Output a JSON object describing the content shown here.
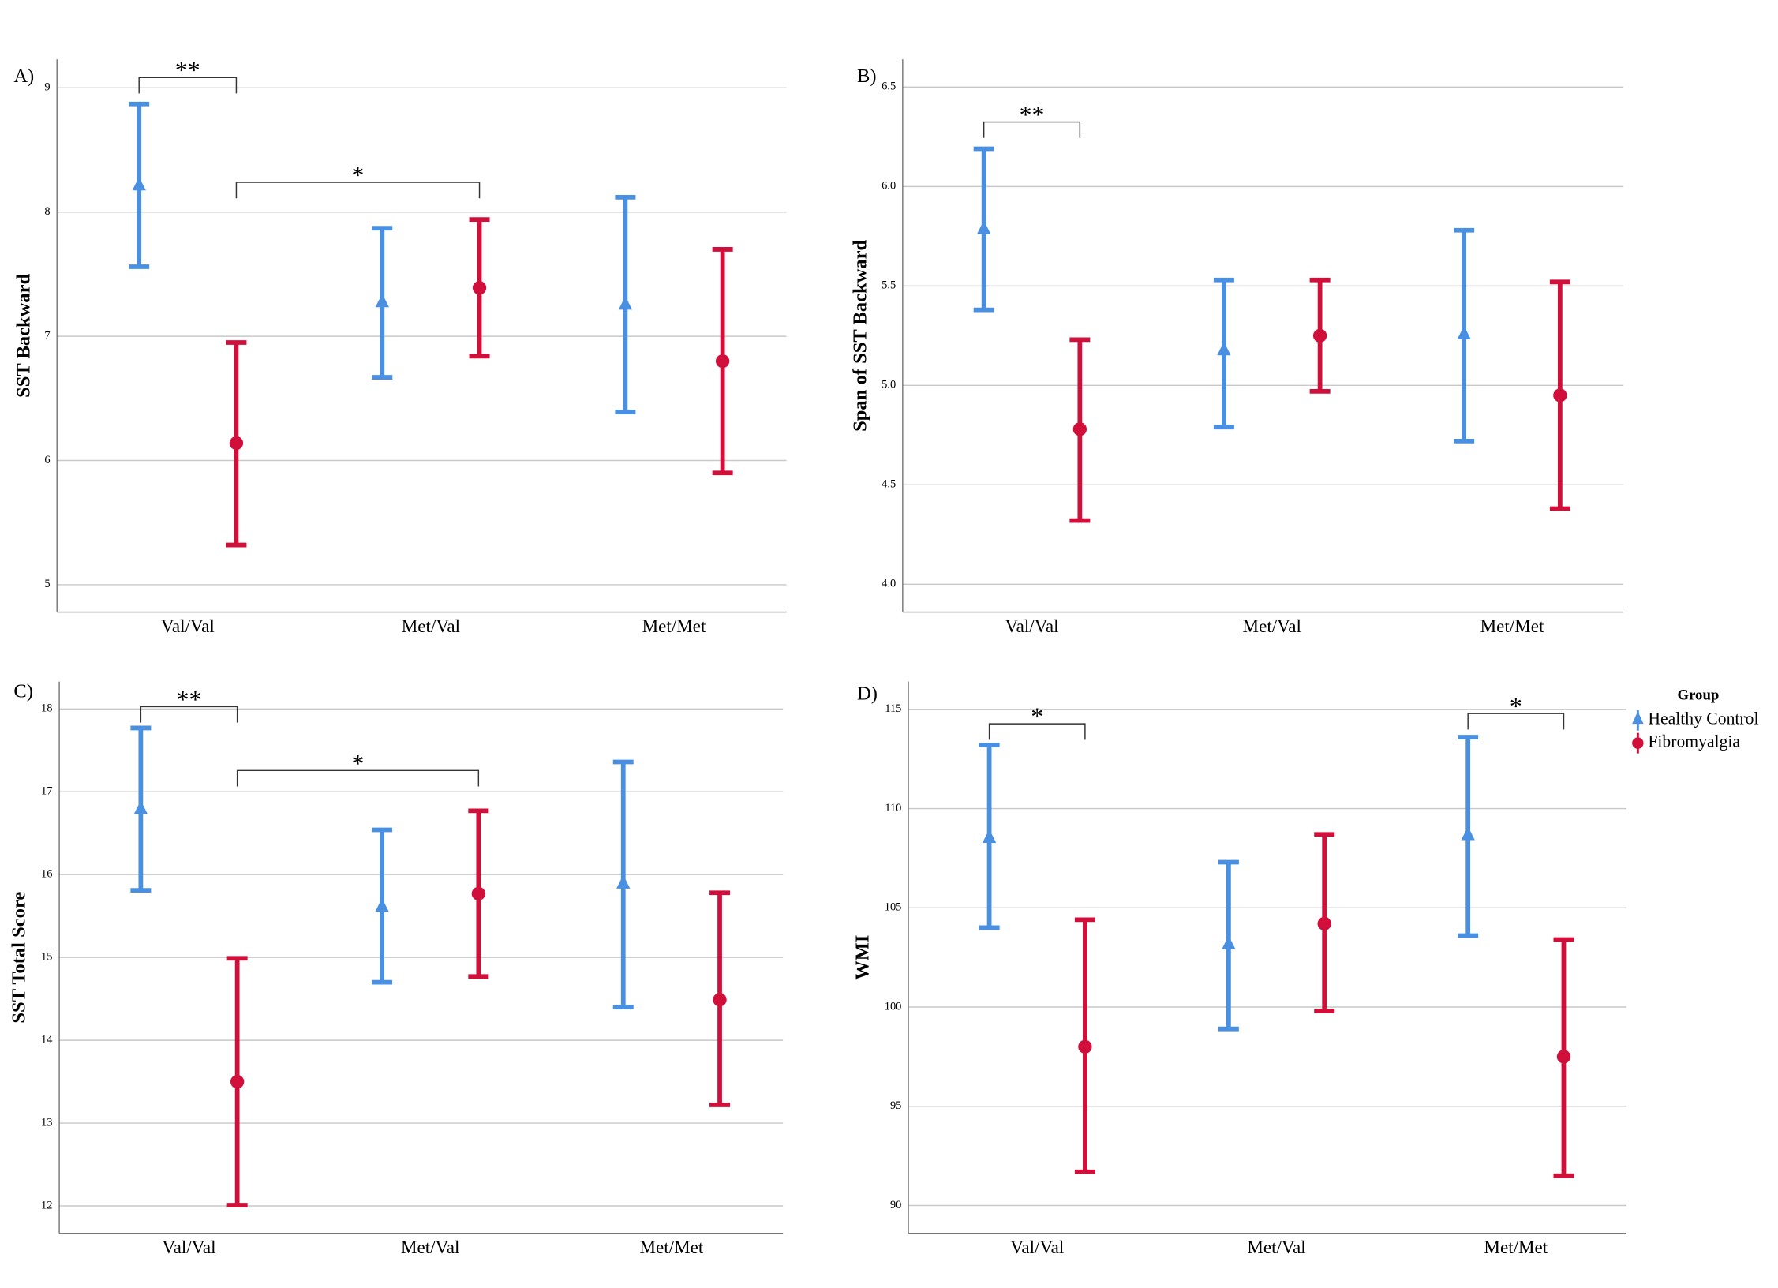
{
  "chart_data": [
    {
      "type": "errorbar",
      "label": "A)",
      "y_label": "SST Backward",
      "categories": [
        "Val/Val",
        "Met/Val",
        "Met/Met"
      ],
      "ylim": [
        4.78,
        9.23
      ],
      "yticks": [
        5,
        6,
        7,
        8,
        9
      ],
      "grid": true,
      "series": [
        {
          "color": "#4a90e2",
          "marker": "triangle",
          "values": [
            8.22,
            7.28,
            7.26
          ],
          "lower": [
            7.56,
            6.67,
            6.39
          ],
          "upper": [
            8.87,
            7.87,
            8.12
          ]
        },
        {
          "color": "#d0103a",
          "marker": "circle",
          "values": [
            6.14,
            7.39,
            6.8
          ],
          "lower": [
            5.32,
            6.84,
            5.9
          ],
          "upper": [
            6.95,
            7.94,
            7.7
          ]
        }
      ],
      "annotations": [
        "**",
        "*"
      ]
    },
    {
      "type": "errorbar",
      "label": "B)",
      "y_label": "Span of SST Backward",
      "categories": [
        "Val/Val",
        "Met/Val",
        "Met/Met"
      ],
      "ylim": [
        3.86,
        6.64
      ],
      "yticks": [
        {
          "value": 4,
          "label": "4.0"
        },
        4.5,
        {
          "value": 5,
          "label": "5.0"
        },
        5.5,
        {
          "value": 6,
          "label": "6.0"
        },
        6.5
      ],
      "grid": true,
      "series": [
        {
          "color": "#4a90e2",
          "marker": "triangle",
          "values": [
            5.79,
            5.18,
            5.26
          ],
          "lower": [
            5.38,
            4.79,
            4.72
          ],
          "upper": [
            6.19,
            5.53,
            5.78
          ]
        },
        {
          "color": "#d0103a",
          "marker": "circle",
          "values": [
            4.78,
            5.25,
            4.95
          ],
          "lower": [
            4.32,
            4.97,
            4.38
          ],
          "upper": [
            5.23,
            5.53,
            5.52
          ]
        }
      ],
      "annotations": [
        "**"
      ]
    },
    {
      "type": "errorbar",
      "label": "C)",
      "y_label": "SST Total Score",
      "categories": [
        "Val/Val",
        "Met/Val",
        "Met/Met"
      ],
      "ylim": [
        11.67,
        18.33
      ],
      "yticks": [
        12,
        13,
        14,
        15,
        16,
        17,
        18
      ],
      "grid": true,
      "series": [
        {
          "color": "#4a90e2",
          "marker": "triangle",
          "values": [
            16.8,
            15.62,
            15.9
          ],
          "lower": [
            15.81,
            14.7,
            14.4
          ],
          "upper": [
            17.77,
            16.54,
            17.36
          ]
        },
        {
          "color": "#d0103a",
          "marker": "circle",
          "values": [
            13.5,
            15.77,
            14.49
          ],
          "lower": [
            12.01,
            14.77,
            13.22
          ],
          "upper": [
            14.99,
            16.77,
            15.78
          ]
        }
      ],
      "annotations": [
        "**",
        "*"
      ]
    },
    {
      "type": "errorbar",
      "label": "D)",
      "y_label": "WMI",
      "categories": [
        "Val/Val",
        "Met/Val",
        "Met/Met"
      ],
      "ylim": [
        88.6,
        116.4
      ],
      "yticks": [
        90,
        95,
        100,
        105,
        110,
        115
      ],
      "grid": true,
      "legend_title": "Group",
      "series": [
        {
          "name": "Healthy Control",
          "color": "#4a90e2",
          "marker": "triangle",
          "values": [
            108.56,
            103.2,
            108.7
          ],
          "lower": [
            104.0,
            98.9,
            103.6
          ],
          "upper": [
            113.2,
            107.3,
            113.6
          ]
        },
        {
          "name": "Fibromyalgia",
          "color": "#d0103a",
          "marker": "circle",
          "values": [
            98.0,
            104.2,
            97.5
          ],
          "lower": [
            91.7,
            99.8,
            91.5
          ],
          "upper": [
            104.4,
            108.7,
            103.4
          ]
        }
      ],
      "annotations": [
        "*",
        "*"
      ]
    }
  ]
}
